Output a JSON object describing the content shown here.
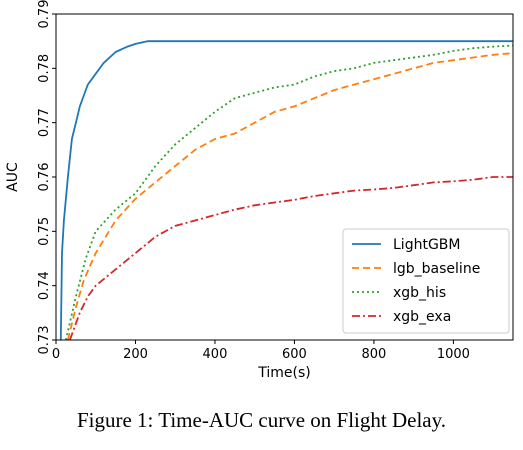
{
  "caption": "Figure 1: Time-AUC curve on Flight Delay.",
  "chart_data": {
    "type": "line",
    "title": "",
    "xlabel": "Time(s)",
    "ylabel": "AUC",
    "xlim": [
      0,
      1150
    ],
    "ylim": [
      0.73,
      0.79
    ],
    "xticks": [
      0,
      200,
      400,
      600,
      800,
      1000
    ],
    "xtick_labels": [
      "0",
      "200",
      "400",
      "600",
      "800",
      "1000"
    ],
    "yticks": [
      0.73,
      0.74,
      0.75,
      0.76,
      0.77,
      0.78,
      0.79
    ],
    "ytick_labels": [
      "0.73",
      "0.74",
      "0.75",
      "0.76",
      "0.77",
      "0.78",
      "0.79"
    ],
    "grid": false,
    "legend_position": "lower-right",
    "series": [
      {
        "name": "LightGBM",
        "color": "#1f77b4",
        "dash": "solid",
        "x": [
          12,
          15,
          20,
          30,
          40,
          50,
          60,
          70,
          80,
          100,
          120,
          150,
          180,
          200,
          230,
          300,
          500,
          800,
          1150
        ],
        "y": [
          0.73,
          0.746,
          0.752,
          0.76,
          0.767,
          0.77,
          0.773,
          0.775,
          0.777,
          0.779,
          0.781,
          0.783,
          0.784,
          0.7845,
          0.785,
          0.785,
          0.785,
          0.785,
          0.785
        ]
      },
      {
        "name": "lgb_baseline",
        "color": "#ff7f0e",
        "dash": "dashed",
        "x": [
          30,
          50,
          70,
          100,
          150,
          200,
          250,
          300,
          350,
          400,
          450,
          500,
          550,
          600,
          650,
          700,
          750,
          800,
          850,
          900,
          950,
          1000,
          1050,
          1100,
          1150
        ],
        "y": [
          0.73,
          0.736,
          0.741,
          0.746,
          0.752,
          0.756,
          0.759,
          0.762,
          0.765,
          0.767,
          0.768,
          0.77,
          0.772,
          0.773,
          0.7745,
          0.776,
          0.777,
          0.778,
          0.779,
          0.78,
          0.781,
          0.7815,
          0.782,
          0.7825,
          0.7828
        ]
      },
      {
        "name": "xgb_his",
        "color": "#2ca02c",
        "dash": "dotted",
        "x": [
          25,
          50,
          75,
          100,
          150,
          200,
          250,
          300,
          350,
          400,
          450,
          500,
          550,
          600,
          650,
          700,
          750,
          800,
          850,
          900,
          950,
          1000,
          1050,
          1100,
          1150
        ],
        "y": [
          0.73,
          0.738,
          0.745,
          0.75,
          0.754,
          0.757,
          0.762,
          0.766,
          0.769,
          0.772,
          0.7745,
          0.7755,
          0.7765,
          0.777,
          0.7785,
          0.7795,
          0.78,
          0.781,
          0.7815,
          0.782,
          0.7825,
          0.7832,
          0.7837,
          0.784,
          0.7842
        ]
      },
      {
        "name": "xgb_exa",
        "color": "#d62728",
        "dash": "dashdot",
        "x": [
          35,
          60,
          80,
          100,
          150,
          200,
          250,
          300,
          350,
          400,
          450,
          500,
          550,
          600,
          650,
          700,
          750,
          800,
          850,
          900,
          950,
          1000,
          1050,
          1100,
          1150
        ],
        "y": [
          0.73,
          0.735,
          0.738,
          0.74,
          0.743,
          0.746,
          0.749,
          0.751,
          0.752,
          0.753,
          0.754,
          0.7548,
          0.7553,
          0.7558,
          0.7565,
          0.757,
          0.7575,
          0.7577,
          0.758,
          0.7585,
          0.759,
          0.7592,
          0.7595,
          0.76,
          0.76
        ]
      }
    ]
  }
}
